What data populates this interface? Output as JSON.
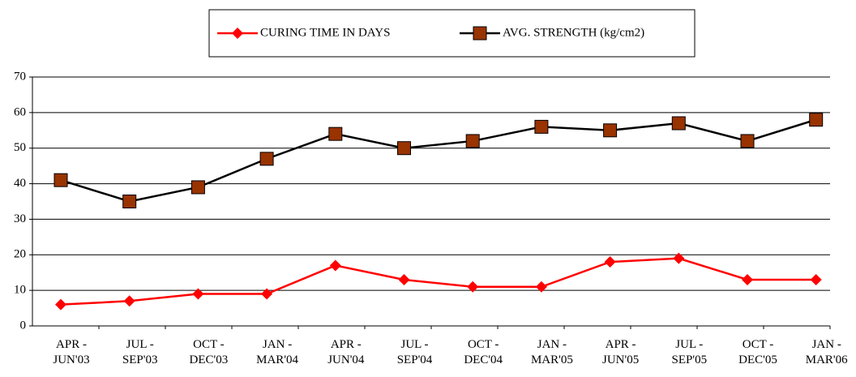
{
  "chart_data": {
    "type": "line",
    "categories": [
      "APR - JUN'03",
      "JUL - SEP'03",
      "OCT - DEC'03",
      "JAN - MAR'04",
      "APR - JUN'04",
      "JUL - SEP'04",
      "OCT - DEC'04",
      "JAN - MAR'05",
      "APR - JUN'05",
      "JUL - SEP'05",
      "OCT - DEC'05",
      "JAN - MAR'06"
    ],
    "series": [
      {
        "name": "CURING TIME IN DAYS",
        "color": "#ff0000",
        "marker": "diamond",
        "values": [
          6,
          7,
          9,
          9,
          17,
          13,
          11,
          11,
          18,
          19,
          13,
          13
        ]
      },
      {
        "name": "AVG. STRENGTH (kg/cm2)",
        "color": "#993300",
        "marker": "square",
        "values": [
          41,
          35,
          39,
          47,
          54,
          50,
          52,
          56,
          55,
          57,
          52,
          58
        ]
      }
    ],
    "ylim": [
      0,
      70
    ],
    "yticks": [
      0,
      10,
      20,
      30,
      40,
      50,
      60,
      70
    ],
    "grid": true,
    "legend": "top"
  }
}
